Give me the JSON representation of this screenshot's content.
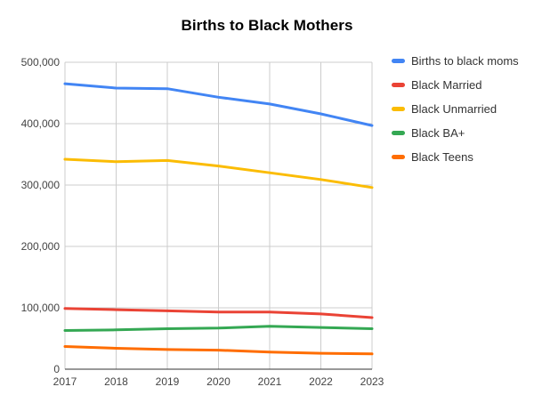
{
  "chart_data": {
    "type": "line",
    "title": "Births to Black Mothers",
    "categories": [
      "2017",
      "2018",
      "2019",
      "2020",
      "2021",
      "2022",
      "2023"
    ],
    "series": [
      {
        "name": "Births to black moms",
        "color": "#4285F4",
        "values": [
          465000,
          458000,
          457000,
          443000,
          432000,
          416000,
          397000
        ]
      },
      {
        "name": "Black Married",
        "color": "#EA4335",
        "values": [
          99000,
          97000,
          95000,
          93000,
          93000,
          90000,
          84000
        ]
      },
      {
        "name": "Black Unmarried",
        "color": "#FBBC04",
        "values": [
          342000,
          338000,
          340000,
          331000,
          320000,
          309000,
          296000
        ]
      },
      {
        "name": "Black BA+",
        "color": "#34A853",
        "values": [
          63000,
          64000,
          66000,
          67000,
          70000,
          68000,
          66000
        ]
      },
      {
        "name": "Black Teens",
        "color": "#FF6D01",
        "values": [
          37000,
          34000,
          32000,
          31000,
          28000,
          26000,
          25000
        ]
      }
    ],
    "y_axis": {
      "min": 0,
      "max": 500000,
      "tick_values": [
        0,
        100000,
        200000,
        300000,
        400000,
        500000
      ],
      "tick_labels": [
        "0",
        "100,000",
        "200,000",
        "300,000",
        "400,000",
        "500,000"
      ]
    },
    "xlabel": "",
    "ylabel": "",
    "grid": true,
    "legend_position": "right"
  },
  "colors": {
    "background": "#ffffff",
    "title": "#000000",
    "gridline": "#cccccc",
    "baseline": "#333333",
    "axis_label": "#444444",
    "legend_text": "#333333"
  }
}
